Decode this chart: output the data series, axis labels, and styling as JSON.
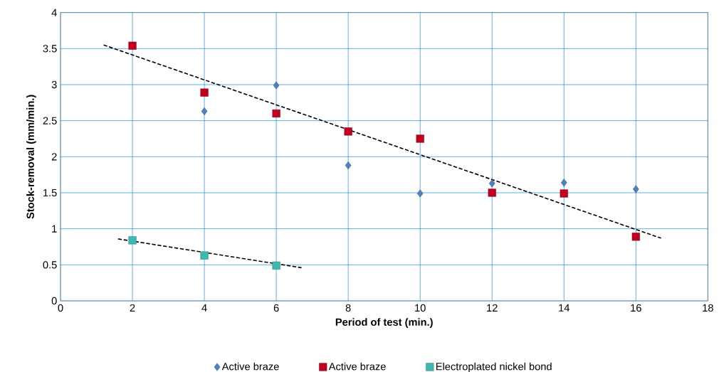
{
  "chart_data": {
    "type": "scatter",
    "xlabel": "Period of test (min.)",
    "ylabel": "Stock-removal (mm/min.)",
    "xlim": [
      0,
      18
    ],
    "xticks": [
      0,
      2,
      4,
      6,
      8,
      10,
      12,
      14,
      16,
      18
    ],
    "ylim": [
      0,
      4
    ],
    "yticks": [
      0,
      0.5,
      1,
      1.5,
      2,
      2.5,
      3,
      3.5,
      4
    ],
    "grid": true,
    "legend": "bottom",
    "series": [
      {
        "name": "Active braze",
        "color": "#4f81bd",
        "marker": "diamond",
        "x": [
          4,
          6,
          8,
          10,
          12,
          14,
          16
        ],
        "values": [
          2.63,
          2.99,
          1.88,
          1.49,
          1.63,
          1.64,
          1.55
        ]
      },
      {
        "name": "Active braze",
        "color": "#c0001e",
        "marker": "square",
        "x": [
          2,
          4,
          6,
          8,
          10,
          12,
          14,
          16
        ],
        "values": [
          3.54,
          2.89,
          2.6,
          2.35,
          2.25,
          1.5,
          1.49,
          0.89
        ]
      },
      {
        "name": "Electroplated nickel bond",
        "color": "#3fb8af",
        "marker": "square",
        "x": [
          2,
          4,
          6
        ],
        "values": [
          0.84,
          0.63,
          0.49
        ]
      },
      {
        "type": "line",
        "color": "#000000",
        "marker": "none",
        "line_style": "dashed",
        "x": [
          1.2,
          16.7
        ],
        "values": [
          3.55,
          0.87
        ]
      },
      {
        "type": "line",
        "color": "#000000",
        "marker": "none",
        "line_style": "dashed",
        "x": [
          1.6,
          6.7
        ],
        "values": [
          0.86,
          0.46
        ]
      }
    ]
  }
}
